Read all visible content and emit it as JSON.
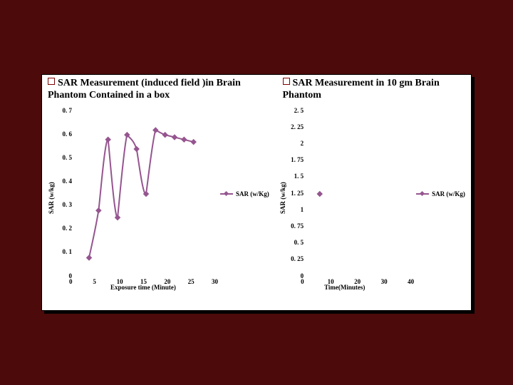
{
  "left": {
    "title": "SAR Measurement (induced field )in Brain Phantom Contained in a box",
    "xlabel": "Exposure time (Minute)",
    "ylabel": "SAR (w/kg)",
    "legend": "SAR (w/Kg)",
    "line_color": "#95558f",
    "marker_color": "#95558f",
    "background": "#ffffff",
    "xlim": [
      0,
      30
    ],
    "ylim": [
      0,
      0.7
    ],
    "xticks": [
      0,
      5,
      10,
      15,
      20,
      25,
      30
    ],
    "xtick_labels": [
      "0",
      "5",
      "10",
      "15",
      "20",
      "25",
      "30"
    ],
    "yticks": [
      0,
      0.1,
      0.2,
      0.3,
      0.4,
      0.5,
      0.6,
      0.7
    ],
    "ytick_labels": [
      "0",
      "0. 1",
      "0. 2",
      "0. 3",
      "0. 4",
      "0. 5",
      "0. 6",
      "0. 7"
    ],
    "x": [
      3,
      5,
      7,
      9,
      11,
      13,
      15,
      17,
      19,
      21,
      23,
      25
    ],
    "y": [
      0.08,
      0.28,
      0.58,
      0.25,
      0.6,
      0.54,
      0.35,
      0.62,
      0.6,
      0.59,
      0.58,
      0.57
    ]
  },
  "right": {
    "title": "SAR Measurement in 10 gm Brain Phantom",
    "xlabel": "Time(Minutes)",
    "ylabel": "SAR (w/kg)",
    "legend": "SAR (w/Kg)",
    "line_color": "#95558f",
    "marker_color": "#95558f",
    "background": "#ffffff",
    "xlim": [
      0,
      40
    ],
    "ylim": [
      0,
      2.5
    ],
    "xticks": [
      0,
      10,
      20,
      30,
      40
    ],
    "xtick_labels": [
      "0",
      "10",
      "20",
      "30",
      "40"
    ],
    "yticks": [
      0,
      0.25,
      0.5,
      0.75,
      1,
      1.25,
      1.5,
      1.75,
      2,
      2.25,
      2.5
    ],
    "ytick_labels": [
      "0",
      "0. 25",
      "0. 5",
      "0. 75",
      "1",
      "1. 25",
      "1. 5",
      "1. 75",
      "2",
      "2. 25",
      "2. 5"
    ],
    "x": [
      5
    ],
    "y": [
      1.25
    ]
  },
  "font_tick": 9,
  "label_fontsize": 9
}
